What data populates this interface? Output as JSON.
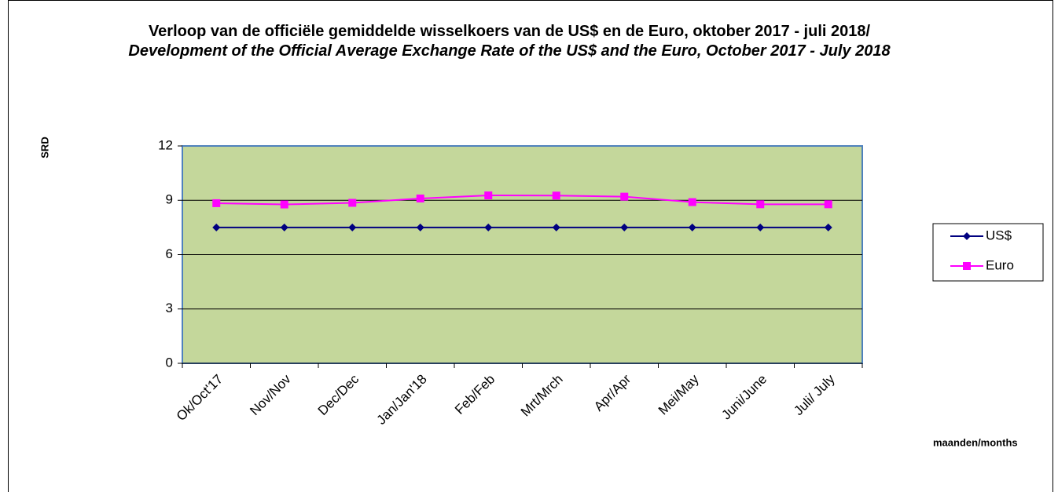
{
  "chart_data": {
    "type": "line",
    "title": "Verloop van de officiële gemiddelde wisselkoers van de US$ en de Euro, oktober 2017 - juli 2018/",
    "subtitle": "Development of the Official Average Exchange Rate of the US$ and the Euro, October 2017 - July 2018",
    "y_label": "SRD",
    "x_label": "maanden/months",
    "categories": [
      "Ok/Oct'17",
      "Nov/Nov",
      "Dec/Dec",
      "Jan/Jan'18",
      "Feb/Feb",
      "Mrt/Mrch",
      "Apr/Apr",
      "Mei/May",
      "Juni/June",
      "Juli/ July"
    ],
    "series": [
      {
        "name": "US$",
        "color": "#000080",
        "marker": "diamond",
        "values": [
          7.5,
          7.5,
          7.5,
          7.5,
          7.5,
          7.5,
          7.5,
          7.5,
          7.5,
          7.5
        ]
      },
      {
        "name": "Euro",
        "color": "#ff00ff",
        "marker": "square",
        "values": [
          8.84,
          8.77,
          8.86,
          9.1,
          9.27,
          9.26,
          9.2,
          8.9,
          8.78,
          8.78
        ]
      }
    ],
    "ylim": [
      0,
      12
    ],
    "yticks": [
      0,
      3,
      6,
      9,
      12
    ],
    "grid": true,
    "legend": "right"
  }
}
